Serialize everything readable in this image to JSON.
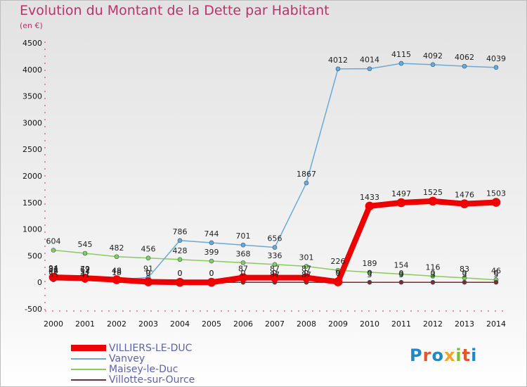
{
  "title": "Evolution du Montant de la Dette par Habitant",
  "unit": "(en €)",
  "logo": {
    "text": "Proxiti",
    "colors": [
      "#1e88c8",
      "#e8552a",
      "#1e88c8",
      "#f3a32a",
      "#7bbf2a",
      "#e8552a",
      "#1e88c8"
    ]
  },
  "chart_data": {
    "type": "line",
    "x": [
      "2000",
      "2001",
      "2002",
      "2003",
      "2004",
      "2005",
      "2006",
      "2007",
      "2008",
      "2009",
      "2010",
      "2011",
      "2012",
      "2013",
      "2014"
    ],
    "ylim": [
      -500,
      4500
    ],
    "yticks": [
      "-500",
      "0",
      "500",
      "1000",
      "1500",
      "2000",
      "2500",
      "3000",
      "3500",
      "4000",
      "4500"
    ],
    "grid": false,
    "legend_position": "bottom-left",
    "series": [
      {
        "name": "Maisey-le-Duc",
        "color": "#88cc5a",
        "values": [
          604,
          545,
          482,
          456,
          428,
          399,
          368,
          336,
          301,
          226,
          189,
          154,
          116,
          83,
          46
        ]
      },
      {
        "name": "Vanvey",
        "color": "#6aaad8",
        "values": [
          81,
          67,
          48,
          91,
          786,
          744,
          701,
          656,
          1867,
          4012,
          4014,
          4115,
          4092,
          4062,
          4039
        ]
      },
      {
        "name": "Villotte-sur-Ource",
        "color": "#7a2e2e",
        "values": [
          46,
          34,
          18,
          0,
          0,
          0,
          0,
          0,
          0,
          0,
          0,
          0,
          0,
          0,
          0
        ]
      },
      {
        "name": "VILLIERS-LE-DUC",
        "color": "#ee0000",
        "values": [
          94,
          79,
          48,
          9,
          0,
          0,
          87,
          87,
          87,
          9,
          1433,
          1497,
          1525,
          1476,
          1503
        ]
      }
    ],
    "extra_labels": [
      {
        "x": "2000",
        "text": "55"
      },
      {
        "x": "2001",
        "text": "41"
      },
      {
        "x": "2007",
        "text": "87"
      },
      {
        "x": "2008",
        "text": "87"
      },
      {
        "x": "2010",
        "text": "3"
      },
      {
        "x": "2011",
        "text": "3"
      },
      {
        "x": "2012",
        "text": "3"
      },
      {
        "x": "2013",
        "text": "3"
      },
      {
        "x": "2014",
        "text": "5"
      }
    ]
  },
  "legend": [
    {
      "name": "VILLIERS-LE-DUC",
      "color": "#ee0000"
    },
    {
      "name": "Vanvey",
      "color": "#6aaad8"
    },
    {
      "name": "Maisey-le-Duc",
      "color": "#88cc5a"
    },
    {
      "name": "Villotte-sur-Ource",
      "color": "#7a2e2e"
    }
  ]
}
